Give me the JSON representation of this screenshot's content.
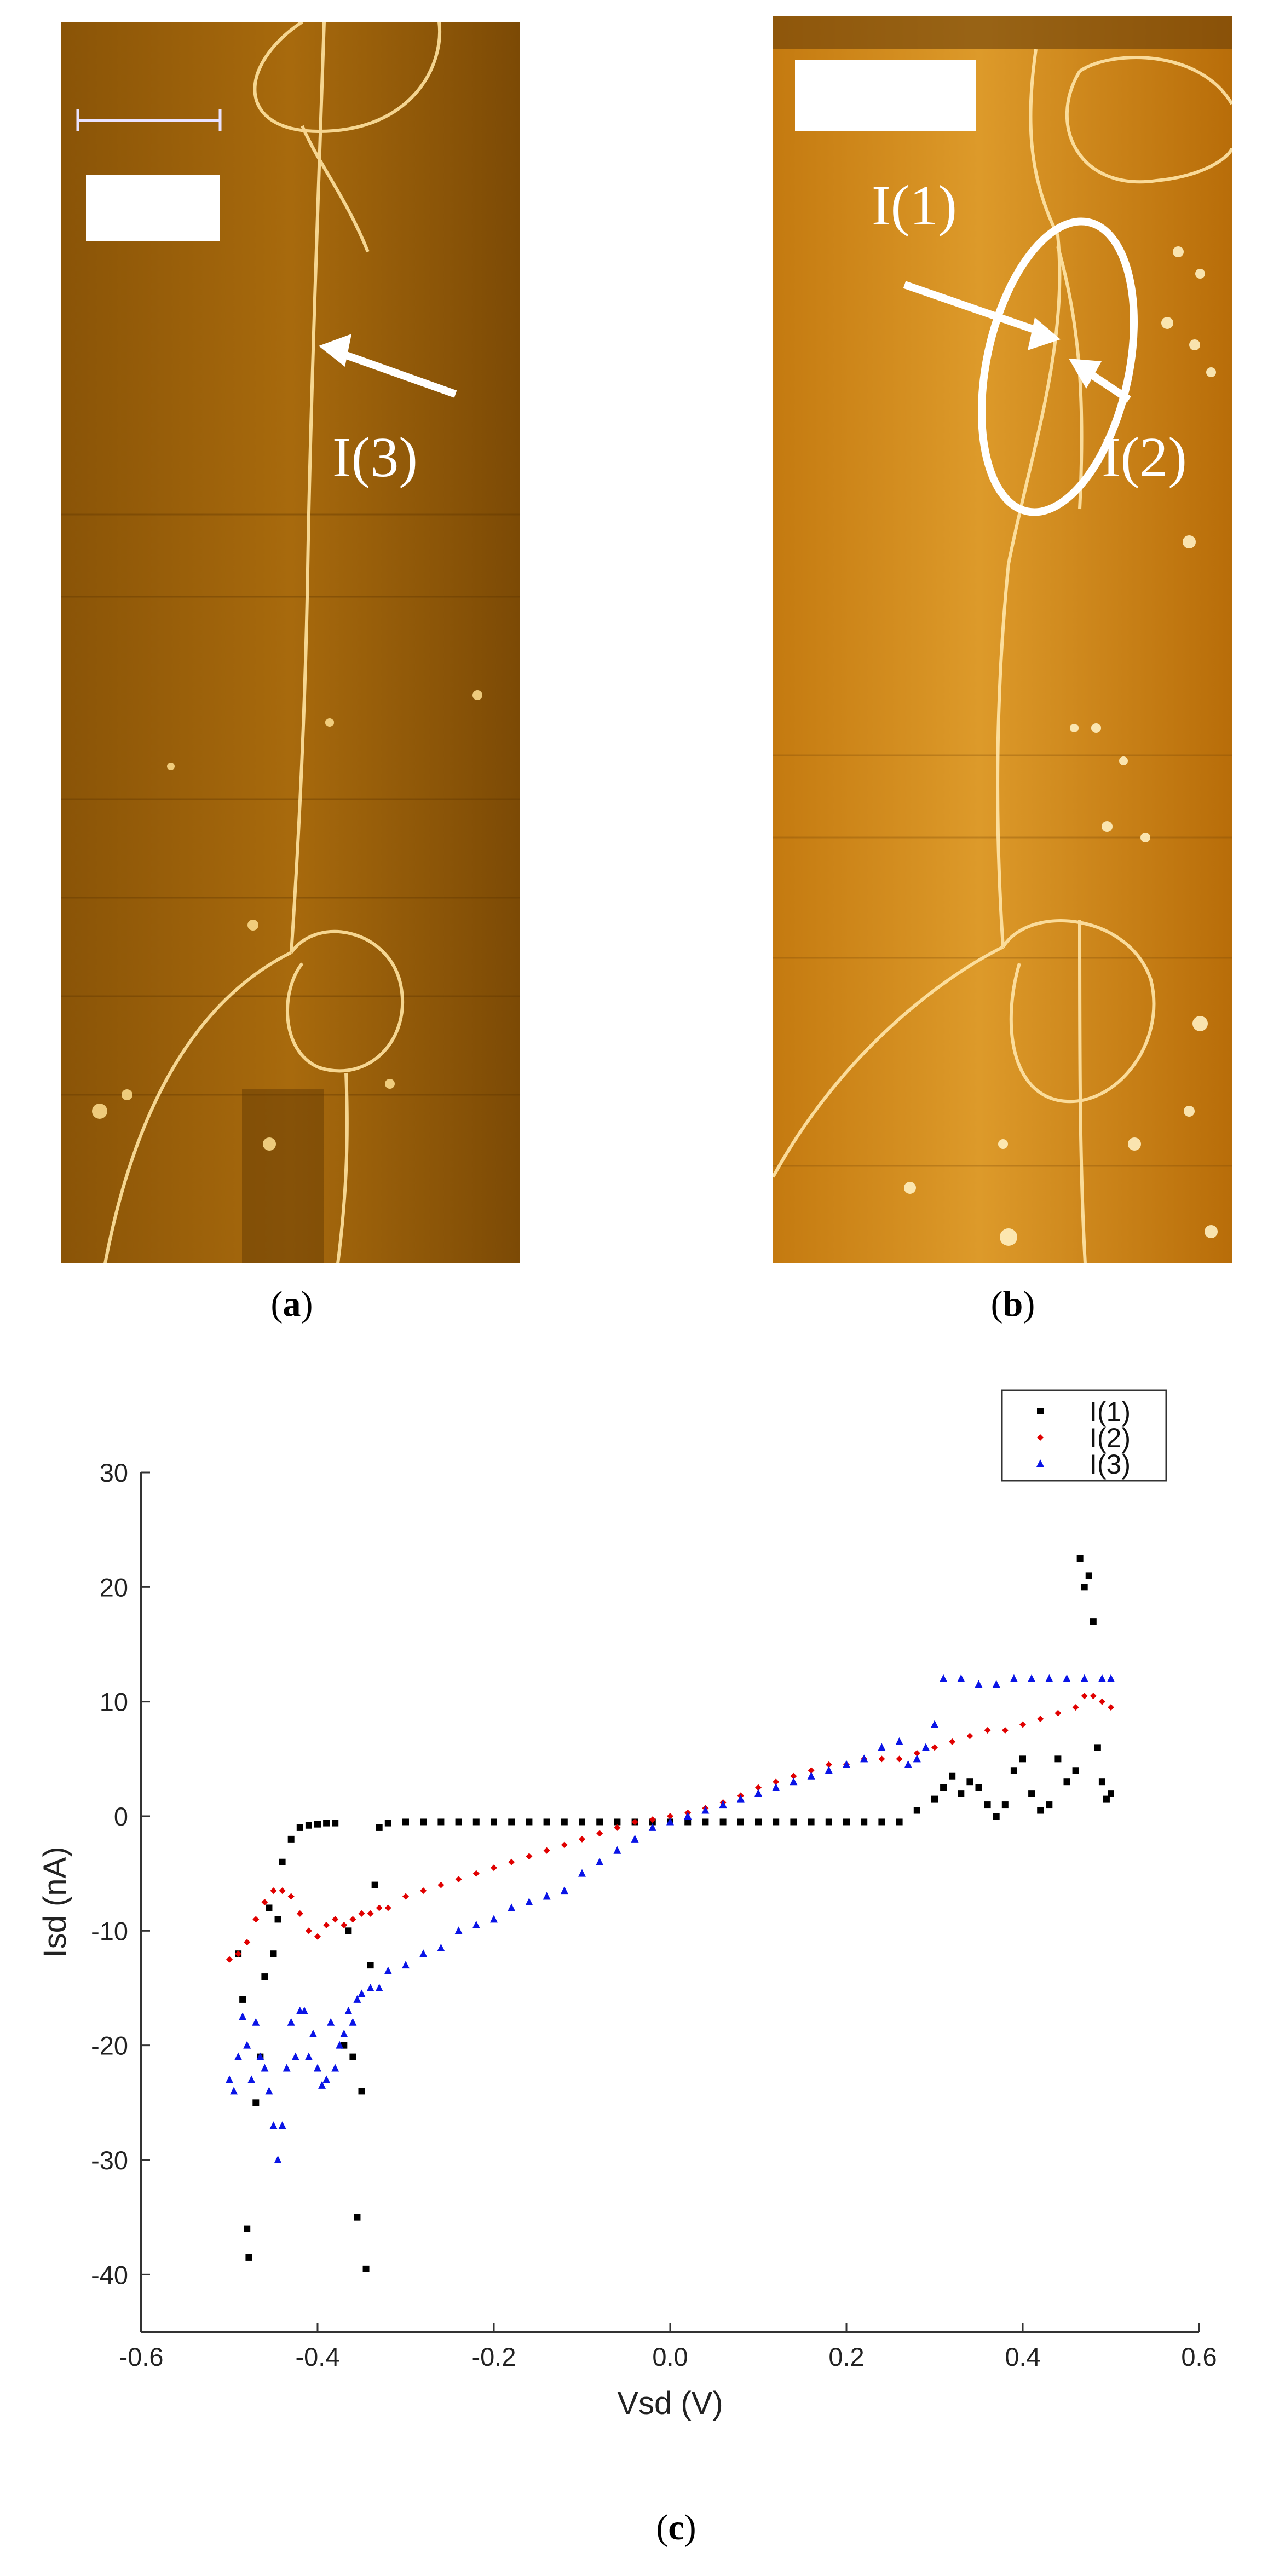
{
  "panels": {
    "a": {
      "prefix": "(",
      "letter": "a",
      "suffix": ")",
      "labels": [
        "I(3)"
      ]
    },
    "b": {
      "prefix": "(",
      "letter": "b",
      "suffix": ")",
      "labels": [
        "I(1)",
        "I(2)"
      ]
    },
    "c": {
      "prefix": "(",
      "letter": "c",
      "suffix": ")"
    }
  },
  "colors": {
    "afm_dark": "#6b3e02",
    "afm_mid": "#b5760f",
    "afm_light": "#ffe9a0",
    "series_black": "#000000",
    "series_red": "#e00000",
    "series_blue": "#0a14e6"
  },
  "chart_data": {
    "type": "scatter",
    "xlabel": "Vsd (V)",
    "ylabel": "Isd (nA)",
    "xlim": [
      -0.6,
      0.6
    ],
    "ylim": [
      -45,
      30
    ],
    "xticks": [
      -0.6,
      -0.4,
      -0.2,
      0.0,
      0.2,
      0.4,
      0.6
    ],
    "xtick_labels": [
      "-0.6",
      "-0.4",
      "-0.2",
      "0.0",
      "0.2",
      "0.4",
      "0.6"
    ],
    "yticks": [
      30,
      20,
      10,
      0,
      -10,
      -20,
      -30,
      -40
    ],
    "ytick_labels": [
      "30",
      "20",
      "10",
      "0",
      "-10",
      "-20",
      "-30",
      "-40"
    ],
    "legend_position": "top-right",
    "grid": false,
    "series": [
      {
        "name": "I(1)",
        "marker": "square",
        "points": [
          [
            -0.49,
            -12
          ],
          [
            -0.485,
            -16
          ],
          [
            -0.48,
            -36
          ],
          [
            -0.478,
            -38.5
          ],
          [
            -0.47,
            -25
          ],
          [
            -0.465,
            -21
          ],
          [
            -0.46,
            -14
          ],
          [
            -0.455,
            -8
          ],
          [
            -0.45,
            -12
          ],
          [
            -0.445,
            -9
          ],
          [
            -0.44,
            -4
          ],
          [
            -0.43,
            -2
          ],
          [
            -0.42,
            -1
          ],
          [
            -0.41,
            -0.8
          ],
          [
            -0.4,
            -0.7
          ],
          [
            -0.39,
            -0.6
          ],
          [
            -0.38,
            -0.6
          ],
          [
            -0.37,
            -20
          ],
          [
            -0.365,
            -10
          ],
          [
            -0.36,
            -21
          ],
          [
            -0.355,
            -35
          ],
          [
            -0.35,
            -24
          ],
          [
            -0.345,
            -39.5
          ],
          [
            -0.34,
            -13
          ],
          [
            -0.335,
            -6
          ],
          [
            -0.33,
            -1
          ],
          [
            -0.32,
            -0.6
          ],
          [
            -0.3,
            -0.5
          ],
          [
            -0.28,
            -0.5
          ],
          [
            -0.26,
            -0.5
          ],
          [
            -0.24,
            -0.5
          ],
          [
            -0.22,
            -0.5
          ],
          [
            -0.2,
            -0.5
          ],
          [
            -0.18,
            -0.5
          ],
          [
            -0.16,
            -0.5
          ],
          [
            -0.14,
            -0.5
          ],
          [
            -0.12,
            -0.5
          ],
          [
            -0.1,
            -0.5
          ],
          [
            -0.08,
            -0.5
          ],
          [
            -0.06,
            -0.5
          ],
          [
            -0.04,
            -0.5
          ],
          [
            -0.02,
            -0.5
          ],
          [
            0.0,
            -0.5
          ],
          [
            0.02,
            -0.5
          ],
          [
            0.04,
            -0.5
          ],
          [
            0.06,
            -0.5
          ],
          [
            0.08,
            -0.5
          ],
          [
            0.1,
            -0.5
          ],
          [
            0.12,
            -0.5
          ],
          [
            0.14,
            -0.5
          ],
          [
            0.16,
            -0.5
          ],
          [
            0.18,
            -0.5
          ],
          [
            0.2,
            -0.5
          ],
          [
            0.22,
            -0.5
          ],
          [
            0.24,
            -0.5
          ],
          [
            0.26,
            -0.5
          ],
          [
            0.28,
            0.5
          ],
          [
            0.3,
            1.5
          ],
          [
            0.31,
            2.5
          ],
          [
            0.32,
            3.5
          ],
          [
            0.33,
            2
          ],
          [
            0.34,
            3
          ],
          [
            0.35,
            2.5
          ],
          [
            0.36,
            1
          ],
          [
            0.37,
            0
          ],
          [
            0.38,
            1
          ],
          [
            0.39,
            4
          ],
          [
            0.4,
            5
          ],
          [
            0.41,
            2
          ],
          [
            0.42,
            0.5
          ],
          [
            0.43,
            1
          ],
          [
            0.44,
            5
          ],
          [
            0.45,
            3
          ],
          [
            0.46,
            4
          ],
          [
            0.465,
            22.5
          ],
          [
            0.47,
            20
          ],
          [
            0.475,
            21
          ],
          [
            0.48,
            17
          ],
          [
            0.485,
            6
          ],
          [
            0.49,
            3
          ],
          [
            0.495,
            1.5
          ],
          [
            0.5,
            2
          ]
        ]
      },
      {
        "name": "I(2)",
        "marker": "diamond",
        "points": [
          [
            -0.5,
            -12.5
          ],
          [
            -0.49,
            -12
          ],
          [
            -0.48,
            -11
          ],
          [
            -0.47,
            -9
          ],
          [
            -0.46,
            -7.5
          ],
          [
            -0.45,
            -6.5
          ],
          [
            -0.44,
            -6.5
          ],
          [
            -0.43,
            -7
          ],
          [
            -0.42,
            -8.5
          ],
          [
            -0.41,
            -10
          ],
          [
            -0.4,
            -10.5
          ],
          [
            -0.39,
            -9.5
          ],
          [
            -0.38,
            -9
          ],
          [
            -0.37,
            -9.5
          ],
          [
            -0.36,
            -9
          ],
          [
            -0.35,
            -8.5
          ],
          [
            -0.34,
            -8.5
          ],
          [
            -0.33,
            -8
          ],
          [
            -0.32,
            -8
          ],
          [
            -0.3,
            -7
          ],
          [
            -0.28,
            -6.5
          ],
          [
            -0.26,
            -6
          ],
          [
            -0.24,
            -5.5
          ],
          [
            -0.22,
            -5
          ],
          [
            -0.2,
            -4.5
          ],
          [
            -0.18,
            -4
          ],
          [
            -0.16,
            -3.5
          ],
          [
            -0.14,
            -3
          ],
          [
            -0.12,
            -2.5
          ],
          [
            -0.1,
            -2
          ],
          [
            -0.08,
            -1.5
          ],
          [
            -0.06,
            -1
          ],
          [
            -0.04,
            -0.5
          ],
          [
            -0.02,
            -0.3
          ],
          [
            0.0,
            0
          ],
          [
            0.02,
            0.3
          ],
          [
            0.04,
            0.7
          ],
          [
            0.06,
            1.2
          ],
          [
            0.08,
            1.8
          ],
          [
            0.1,
            2.5
          ],
          [
            0.12,
            3
          ],
          [
            0.14,
            3.5
          ],
          [
            0.16,
            4
          ],
          [
            0.18,
            4.5
          ],
          [
            0.2,
            4.5
          ],
          [
            0.22,
            5
          ],
          [
            0.24,
            5
          ],
          [
            0.26,
            5
          ],
          [
            0.28,
            5.5
          ],
          [
            0.3,
            6
          ],
          [
            0.32,
            6.5
          ],
          [
            0.34,
            7
          ],
          [
            0.36,
            7.5
          ],
          [
            0.38,
            7.5
          ],
          [
            0.4,
            8
          ],
          [
            0.42,
            8.5
          ],
          [
            0.44,
            9
          ],
          [
            0.46,
            9.5
          ],
          [
            0.47,
            10.5
          ],
          [
            0.48,
            10.5
          ],
          [
            0.49,
            10
          ],
          [
            0.5,
            9.5
          ]
        ]
      },
      {
        "name": "I(3)",
        "marker": "triangle",
        "points": [
          [
            -0.5,
            -23
          ],
          [
            -0.495,
            -24
          ],
          [
            -0.49,
            -21
          ],
          [
            -0.485,
            -17.5
          ],
          [
            -0.48,
            -20
          ],
          [
            -0.475,
            -23
          ],
          [
            -0.47,
            -18
          ],
          [
            -0.465,
            -21
          ],
          [
            -0.46,
            -22
          ],
          [
            -0.455,
            -24
          ],
          [
            -0.45,
            -27
          ],
          [
            -0.445,
            -30
          ],
          [
            -0.44,
            -27
          ],
          [
            -0.435,
            -22
          ],
          [
            -0.43,
            -18
          ],
          [
            -0.425,
            -21
          ],
          [
            -0.42,
            -17
          ],
          [
            -0.415,
            -17
          ],
          [
            -0.41,
            -21
          ],
          [
            -0.405,
            -19
          ],
          [
            -0.4,
            -22
          ],
          [
            -0.395,
            -23.5
          ],
          [
            -0.39,
            -23
          ],
          [
            -0.385,
            -18
          ],
          [
            -0.38,
            -22
          ],
          [
            -0.375,
            -20
          ],
          [
            -0.37,
            -19
          ],
          [
            -0.365,
            -17
          ],
          [
            -0.36,
            -18
          ],
          [
            -0.355,
            -16
          ],
          [
            -0.35,
            -15.5
          ],
          [
            -0.34,
            -15
          ],
          [
            -0.33,
            -15
          ],
          [
            -0.32,
            -13.5
          ],
          [
            -0.3,
            -13
          ],
          [
            -0.28,
            -12
          ],
          [
            -0.26,
            -11.5
          ],
          [
            -0.24,
            -10
          ],
          [
            -0.22,
            -9.5
          ],
          [
            -0.2,
            -9
          ],
          [
            -0.18,
            -8
          ],
          [
            -0.16,
            -7.5
          ],
          [
            -0.14,
            -7
          ],
          [
            -0.12,
            -6.5
          ],
          [
            -0.1,
            -5
          ],
          [
            -0.08,
            -4
          ],
          [
            -0.06,
            -3
          ],
          [
            -0.04,
            -2
          ],
          [
            -0.02,
            -1
          ],
          [
            0.0,
            -0.5
          ],
          [
            0.02,
            0
          ],
          [
            0.04,
            0.5
          ],
          [
            0.06,
            1
          ],
          [
            0.08,
            1.5
          ],
          [
            0.1,
            2
          ],
          [
            0.12,
            2.5
          ],
          [
            0.14,
            3
          ],
          [
            0.16,
            3.5
          ],
          [
            0.18,
            4
          ],
          [
            0.2,
            4.5
          ],
          [
            0.22,
            5
          ],
          [
            0.24,
            6
          ],
          [
            0.26,
            6.5
          ],
          [
            0.27,
            4.5
          ],
          [
            0.28,
            5
          ],
          [
            0.29,
            6
          ],
          [
            0.3,
            8
          ],
          [
            0.31,
            12
          ],
          [
            0.33,
            12
          ],
          [
            0.35,
            11.5
          ],
          [
            0.37,
            11.5
          ],
          [
            0.39,
            12
          ],
          [
            0.41,
            12
          ],
          [
            0.43,
            12
          ],
          [
            0.45,
            12
          ],
          [
            0.47,
            12
          ],
          [
            0.49,
            12
          ],
          [
            0.5,
            12
          ]
        ]
      }
    ]
  }
}
